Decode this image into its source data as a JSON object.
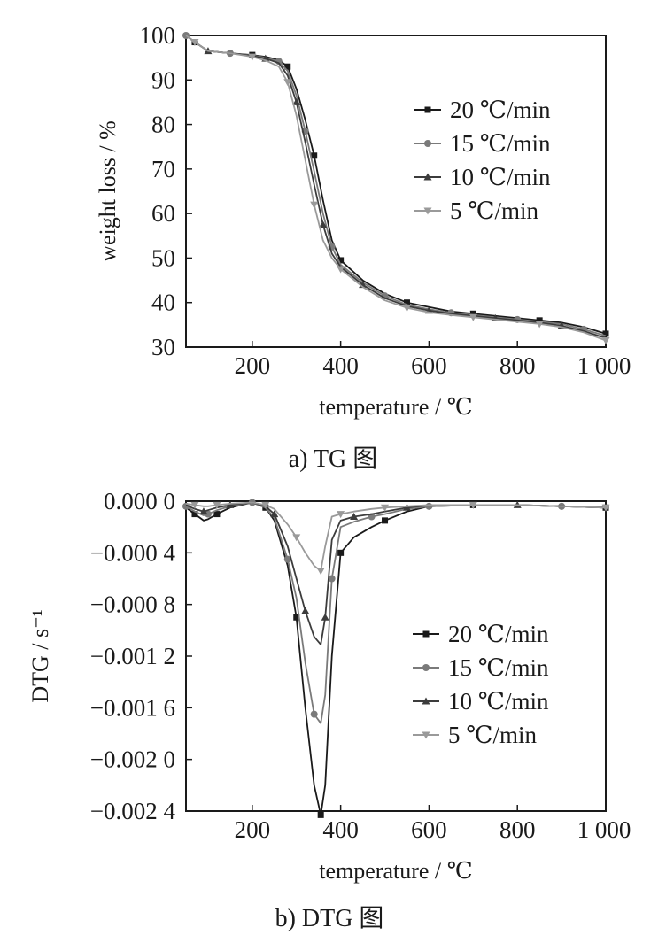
{
  "chart_data": [
    {
      "type": "line",
      "caption": "a) TG 图",
      "xlabel": "temperature / ℃",
      "ylabel": "weight loss / %",
      "xlim": [
        50,
        1000
      ],
      "ylim": [
        30,
        100
      ],
      "xticks": [
        200,
        400,
        600,
        800,
        1000
      ],
      "xtick_labels": [
        "200",
        "400",
        "600",
        "800",
        "1 000"
      ],
      "yticks": [
        30,
        40,
        50,
        60,
        70,
        80,
        90,
        100
      ],
      "ytick_labels": [
        "30",
        "40",
        "50",
        "60",
        "70",
        "80",
        "90",
        "100"
      ],
      "grid": false,
      "legend_position": "top-right",
      "x": [
        50,
        70,
        100,
        150,
        200,
        230,
        260,
        280,
        300,
        320,
        340,
        360,
        380,
        400,
        450,
        500,
        550,
        600,
        650,
        700,
        750,
        800,
        850,
        900,
        950,
        1000
      ],
      "series": [
        {
          "name": "20 ℃/min",
          "color": "#1a1a1a",
          "marker": "square",
          "values": [
            100,
            98.5,
            96.5,
            96,
            95.6,
            95.2,
            94.5,
            93,
            88,
            81,
            73,
            63,
            54,
            49.5,
            45,
            42,
            40,
            39,
            38,
            37.5,
            37,
            36.5,
            36,
            35.5,
            34.5,
            33
          ]
        },
        {
          "name": "15 ℃/min",
          "color": "#7a7a7a",
          "marker": "circle",
          "values": [
            100,
            98.5,
            96.5,
            96,
            95.5,
            95,
            94.2,
            92,
            86.5,
            78.5,
            69.5,
            60,
            52.5,
            48.5,
            44.5,
            41.5,
            39.5,
            38.5,
            37.7,
            37.2,
            36.7,
            36.2,
            35.7,
            35.2,
            34,
            32.5
          ]
        },
        {
          "name": "10 ℃/min",
          "color": "#3c3c3c",
          "marker": "triangle-up",
          "values": [
            100,
            98.5,
            96.5,
            96,
            95.4,
            94.8,
            93.8,
            91,
            85,
            76,
            66.5,
            57.5,
            51,
            48,
            44,
            41,
            39.2,
            38.2,
            37.5,
            37,
            36.5,
            36,
            35.5,
            34.8,
            33.6,
            32
          ]
        },
        {
          "name": "5 ℃/min",
          "color": "#9a9a9a",
          "marker": "triangle-down",
          "values": [
            100,
            98.5,
            96.5,
            96,
            95.2,
            94.4,
            93,
            89.5,
            82,
            72,
            62,
            54,
            50,
            47.5,
            43.5,
            40.5,
            38.8,
            37.8,
            37.2,
            36.7,
            36.2,
            35.7,
            35.2,
            34.5,
            33.3,
            31.5
          ]
        }
      ]
    },
    {
      "type": "line",
      "caption": "b) DTG 图",
      "xlabel": "temperature / ℃",
      "ylabel": "DTG / s⁻¹",
      "xlim": [
        50,
        1000
      ],
      "ylim": [
        -0.0024,
        0
      ],
      "xticks": [
        200,
        400,
        600,
        800,
        1000
      ],
      "xtick_labels": [
        "200",
        "400",
        "600",
        "800",
        "1 000"
      ],
      "yticks": [
        0,
        -0.0004,
        -0.0008,
        -0.0012,
        -0.0016,
        -0.002,
        -0.0024
      ],
      "ytick_labels": [
        "0.000 0",
        "−0.000 4",
        "−0.000 8",
        "−0.001 2",
        "−0.001 6",
        "−0.002 0",
        "−0.002 4"
      ],
      "grid": false,
      "legend_position": "right",
      "x": [
        50,
        70,
        90,
        100,
        120,
        150,
        200,
        230,
        250,
        280,
        300,
        320,
        340,
        355,
        365,
        380,
        400,
        430,
        470,
        500,
        550,
        600,
        700,
        800,
        900,
        1000
      ],
      "series": [
        {
          "name": "20 ℃/min",
          "color": "#1a1a1a",
          "marker": "square",
          "values": [
            -5e-05,
            -0.0001,
            -0.00015,
            -0.00014,
            -0.0001,
            -5e-05,
            -1e-05,
            -5e-05,
            -0.00015,
            -0.0005,
            -0.0009,
            -0.0016,
            -0.0022,
            -0.00243,
            -0.0022,
            -0.0012,
            -0.0004,
            -0.00028,
            -0.0002,
            -0.00015,
            -8e-05,
            -4e-05,
            -3e-05,
            -3e-05,
            -4e-05,
            -5e-05
          ]
        },
        {
          "name": "15 ℃/min",
          "color": "#7a7a7a",
          "marker": "circle",
          "values": [
            -4e-05,
            -8e-05,
            -0.00011,
            -0.0001,
            -7e-05,
            -4e-05,
            -1e-05,
            -5e-05,
            -0.00013,
            -0.00045,
            -0.00075,
            -0.00125,
            -0.00165,
            -0.00172,
            -0.0015,
            -0.0006,
            -0.0002,
            -0.00016,
            -0.00012,
            -0.0001,
            -6e-05,
            -4e-05,
            -3e-05,
            -3e-05,
            -4e-05,
            -5e-05
          ]
        },
        {
          "name": "10 ℃/min",
          "color": "#3c3c3c",
          "marker": "triangle-up",
          "values": [
            -3e-05,
            -6e-05,
            -8e-05,
            -7e-05,
            -5e-05,
            -3e-05,
            -1e-05,
            -4e-05,
            -0.0001,
            -0.00035,
            -0.0006,
            -0.00085,
            -0.00105,
            -0.00111,
            -0.0009,
            -0.0003,
            -0.00015,
            -0.00012,
            -0.0001,
            -8e-05,
            -5e-05,
            -3e-05,
            -3e-05,
            -3e-05,
            -4e-05,
            -5e-05
          ]
        },
        {
          "name": "5 ℃/min",
          "color": "#9a9a9a",
          "marker": "triangle-down",
          "values": [
            -2e-05,
            -3e-05,
            -4e-05,
            -4e-05,
            -3e-05,
            -2e-05,
            -1e-05,
            -3e-05,
            -6e-05,
            -0.00018,
            -0.00028,
            -0.0004,
            -0.0005,
            -0.00054,
            -0.00035,
            -0.00012,
            -0.0001,
            -8e-05,
            -6e-05,
            -5e-05,
            -4e-05,
            -3e-05,
            -3e-05,
            -3e-05,
            -4e-05,
            -5e-05
          ]
        }
      ]
    }
  ]
}
